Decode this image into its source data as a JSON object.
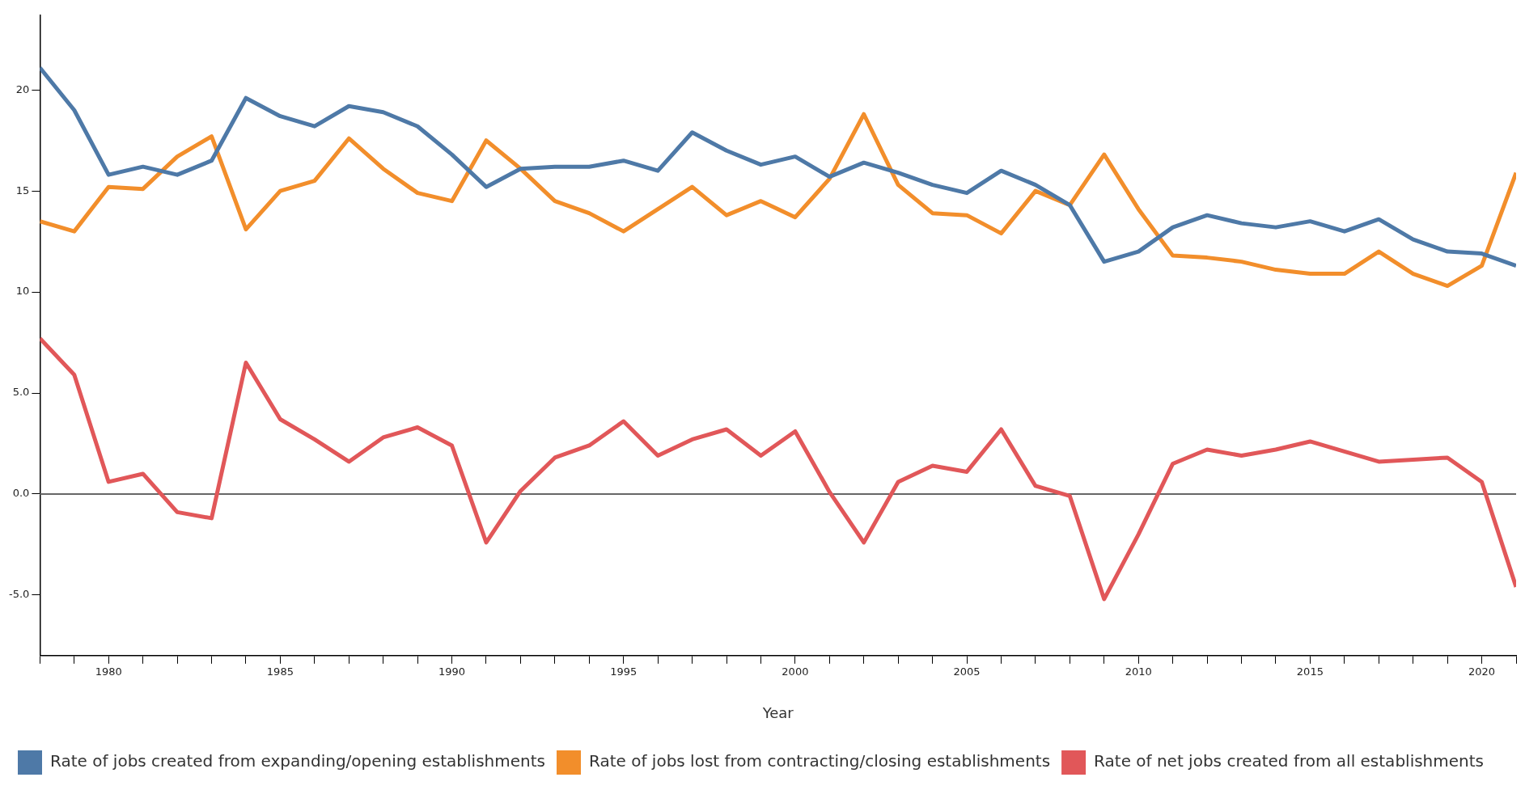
{
  "chart_data": {
    "type": "line",
    "xlabel": "Year",
    "x": [
      1978,
      1979,
      1980,
      1981,
      1982,
      1983,
      1984,
      1985,
      1986,
      1987,
      1988,
      1989,
      1990,
      1991,
      1992,
      1993,
      1994,
      1995,
      1996,
      1997,
      1998,
      1999,
      2000,
      2001,
      2002,
      2003,
      2004,
      2005,
      2006,
      2007,
      2008,
      2009,
      2010,
      2011,
      2012,
      2013,
      2014,
      2015,
      2016,
      2017,
      2018,
      2019,
      2020,
      2021
    ],
    "series": [
      {
        "name": "Rate of jobs created from expanding/opening establishments",
        "color": "#4e79a7",
        "values": [
          21.1,
          19.0,
          15.8,
          16.2,
          15.8,
          16.5,
          19.6,
          18.7,
          18.2,
          19.2,
          18.9,
          18.2,
          16.8,
          15.2,
          16.1,
          16.2,
          16.2,
          16.5,
          16.0,
          17.9,
          17.0,
          16.3,
          16.7,
          15.7,
          16.4,
          15.9,
          15.3,
          14.9,
          16.0,
          15.3,
          14.3,
          11.5,
          12.0,
          13.2,
          13.8,
          13.4,
          13.2,
          13.5,
          13.0,
          13.6,
          12.6,
          12.0,
          11.9,
          11.3
        ]
      },
      {
        "name": "Rate of jobs lost from contracting/closing establishments",
        "color": "#f28e2b",
        "values": [
          13.5,
          13.0,
          15.2,
          15.1,
          16.7,
          17.7,
          13.1,
          15.0,
          15.5,
          17.6,
          16.1,
          14.9,
          14.5,
          17.5,
          16.1,
          14.5,
          13.9,
          13.0,
          14.1,
          15.2,
          13.8,
          14.5,
          13.7,
          15.6,
          18.8,
          15.3,
          13.9,
          13.8,
          12.9,
          15.0,
          14.3,
          16.8,
          14.1,
          11.8,
          11.7,
          11.5,
          11.1,
          10.9,
          10.9,
          12.0,
          10.9,
          10.3,
          11.3,
          15.9
        ]
      },
      {
        "name": "Rate of net jobs created from all establishments",
        "color": "#e15759",
        "values": [
          7.7,
          5.9,
          0.6,
          1.0,
          -0.9,
          -1.2,
          6.5,
          3.7,
          2.7,
          1.6,
          2.8,
          3.3,
          2.4,
          -2.4,
          0.15,
          1.8,
          2.4,
          3.6,
          1.9,
          2.7,
          3.2,
          1.9,
          3.1,
          0.1,
          -2.4,
          0.6,
          1.4,
          1.1,
          3.2,
          0.4,
          -0.1,
          -5.2,
          -2.0,
          1.5,
          2.2,
          1.9,
          2.2,
          2.6,
          2.1,
          1.6,
          1.7,
          1.8,
          0.6,
          -4.6
        ]
      }
    ],
    "xlim": [
      1978,
      2021
    ],
    "xticks": [
      {
        "value": 1978,
        "label": null
      },
      {
        "value": 1979,
        "label": null
      },
      1980,
      {
        "value": 1981,
        "label": null
      },
      {
        "value": 1982,
        "label": null
      },
      {
        "value": 1983,
        "label": null
      },
      {
        "value": 1984,
        "label": null
      },
      1985,
      {
        "value": 1986,
        "label": null
      },
      {
        "value": 1987,
        "label": null
      },
      {
        "value": 1988,
        "label": null
      },
      {
        "value": 1989,
        "label": null
      },
      1990,
      {
        "value": 1991,
        "label": null
      },
      {
        "value": 1992,
        "label": null
      },
      {
        "value": 1993,
        "label": null
      },
      {
        "value": 1994,
        "label": null
      },
      1995,
      {
        "value": 1996,
        "label": null
      },
      {
        "value": 1997,
        "label": null
      },
      {
        "value": 1998,
        "label": null
      },
      {
        "value": 1999,
        "label": null
      },
      2000,
      {
        "value": 2001,
        "label": null
      },
      {
        "value": 2002,
        "label": null
      },
      {
        "value": 2003,
        "label": null
      },
      {
        "value": 2004,
        "label": null
      },
      2005,
      {
        "value": 2006,
        "label": null
      },
      {
        "value": 2007,
        "label": null
      },
      {
        "value": 2008,
        "label": null
      },
      {
        "value": 2009,
        "label": null
      },
      2010,
      {
        "value": 2011,
        "label": null
      },
      {
        "value": 2012,
        "label": null
      },
      {
        "value": 2013,
        "label": null
      },
      {
        "value": 2014,
        "label": null
      },
      2015,
      {
        "value": 2016,
        "label": null
      },
      {
        "value": 2017,
        "label": null
      },
      {
        "value": 2018,
        "label": null
      },
      {
        "value": 2019,
        "label": null
      },
      2020,
      {
        "value": 2021,
        "label": null
      }
    ],
    "ylim": [
      -8,
      23.7
    ],
    "yticks": [
      {
        "value": -5,
        "label": "-5.0"
      },
      {
        "value": 0,
        "label": "0.0"
      },
      {
        "value": 5,
        "label": "5.0"
      },
      10,
      15,
      20
    ],
    "ref_lines": [
      {
        "axis": "y",
        "value": 0,
        "color": "#666666"
      }
    ],
    "grid": false,
    "legend": "bottom left",
    "marker": "none",
    "line_style": "solid"
  }
}
